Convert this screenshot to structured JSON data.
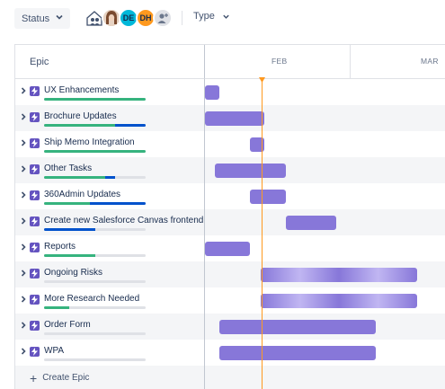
{
  "toolbar": {
    "status_label": "Status",
    "avatars": [
      {
        "kind": "home",
        "icon": "house-people-icon"
      },
      {
        "kind": "photo",
        "icon": "user-photo"
      },
      {
        "kind": "initials",
        "text": "DE",
        "color": "#00b8d9"
      },
      {
        "kind": "initials",
        "text": "DH",
        "color": "#ff991f"
      },
      {
        "kind": "add",
        "icon": "add-person-icon"
      }
    ],
    "type_label": "Type"
  },
  "roadmap": {
    "column_header": "Epic",
    "months": [
      "FEB",
      "MAR"
    ],
    "today_color": "#ff991f",
    "bar_color": "#8777d9",
    "epics": [
      {
        "name": "UX Enhancements",
        "progress_done": 1.0,
        "progress_in_progress": 0.0
      },
      {
        "name": "Brochure Updates",
        "progress_done": 0.7,
        "progress_in_progress": 0.3
      },
      {
        "name": "Ship Memo Integration",
        "progress_done": 1.0,
        "progress_in_progress": 0.0
      },
      {
        "name": "Other Tasks",
        "progress_done": 0.6,
        "progress_in_progress": 0.1
      },
      {
        "name": "360Admin Updates",
        "progress_done": 0.45,
        "progress_in_progress": 0.55
      },
      {
        "name": "Create new Salesforce Canvas frontend",
        "progress_done": 0.0,
        "progress_in_progress": 0.5
      },
      {
        "name": "Reports",
        "progress_done": 0.5,
        "progress_in_progress": 0.0
      },
      {
        "name": "Ongoing Risks",
        "progress_done": 0.0,
        "progress_in_progress": 0.0
      },
      {
        "name": "More Research Needed",
        "progress_done": 0.25,
        "progress_in_progress": 0.0
      },
      {
        "name": "Order Form",
        "progress_done": 0.0,
        "progress_in_progress": 0.0
      },
      {
        "name": "WPA",
        "progress_done": 0.0,
        "progress_in_progress": 0.0
      }
    ],
    "create_label": "Create Epic"
  }
}
